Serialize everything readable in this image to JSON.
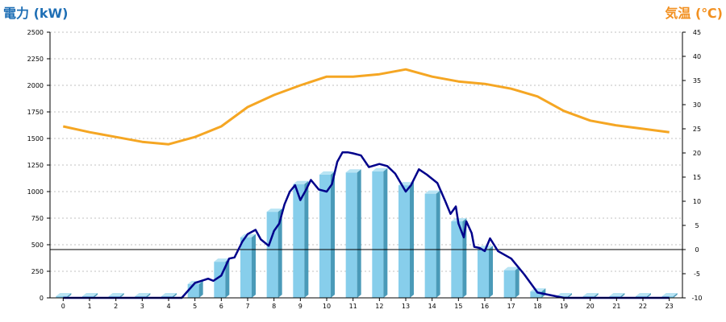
{
  "chart_data": {
    "type": "bar",
    "left_axis_title": "電力 (kW)",
    "right_axis_title": "気温 (℃)",
    "categories": [
      "0",
      "1",
      "2",
      "3",
      "4",
      "5",
      "6",
      "7",
      "8",
      "9",
      "10",
      "11",
      "12",
      "13",
      "14",
      "15",
      "16",
      "17",
      "18",
      "19",
      "20",
      "21",
      "22",
      "23"
    ],
    "y_left": {
      "min": 0,
      "max": 2500,
      "ticks": [
        0,
        250,
        500,
        750,
        1000,
        1250,
        1500,
        1750,
        2000,
        2250,
        2500
      ]
    },
    "y_right": {
      "min": -10,
      "max": 45,
      "ticks": [
        -10,
        -5,
        0,
        5,
        10,
        15,
        20,
        25,
        30,
        35,
        40,
        45
      ]
    },
    "grid": true,
    "zero_line_right": 0,
    "series": [
      {
        "kind": "bar",
        "axis": "left",
        "color": "#87ceeb",
        "values": [
          15,
          15,
          15,
          15,
          15,
          130,
          340,
          570,
          810,
          1070,
          1160,
          1180,
          1190,
          1060,
          980,
          720,
          460,
          260,
          60,
          15,
          15,
          15,
          15,
          15
        ]
      },
      {
        "kind": "line",
        "axis": "left",
        "color": "#00008b",
        "x": [
          0,
          1,
          2,
          3,
          4,
          4.5,
          5,
          5.5,
          5.7,
          6,
          6.3,
          6.5,
          6.8,
          7,
          7.3,
          7.5,
          7.8,
          8,
          8.2,
          8.4,
          8.6,
          8.8,
          9,
          9.2,
          9.4,
          9.7,
          10,
          10.2,
          10.4,
          10.6,
          10.8,
          11,
          11.3,
          11.6,
          12,
          12.3,
          12.6,
          13,
          13.2,
          13.5,
          13.8,
          14.2,
          14.5,
          14.7,
          14.9,
          15,
          15.2,
          15.3,
          15.5,
          15.6,
          15.8,
          16,
          16.2,
          16.5,
          17,
          17.5,
          18,
          19,
          20,
          21,
          22,
          23
        ],
        "values": [
          0,
          0,
          0,
          0,
          0,
          0,
          140,
          180,
          160,
          210,
          370,
          380,
          530,
          600,
          640,
          550,
          490,
          630,
          700,
          880,
          1000,
          1060,
          920,
          1010,
          1110,
          1020,
          1000,
          1070,
          1280,
          1370,
          1370,
          1360,
          1340,
          1230,
          1260,
          1240,
          1170,
          1000,
          1060,
          1210,
          1160,
          1080,
          910,
          790,
          860,
          700,
          570,
          720,
          610,
          480,
          470,
          440,
          560,
          440,
          370,
          220,
          50,
          0,
          0,
          0,
          0,
          0
        ]
      },
      {
        "kind": "line",
        "axis": "right",
        "color": "#f5a623",
        "values": [
          25.5,
          24.3,
          23.3,
          22.3,
          21.8,
          23.3,
          25.5,
          29.5,
          32,
          34,
          35.8,
          35.8,
          36.3,
          37.3,
          35.8,
          34.8,
          34.3,
          33.3,
          31.7,
          28.7,
          26.7,
          25.7,
          25,
          24.3
        ]
      }
    ]
  }
}
